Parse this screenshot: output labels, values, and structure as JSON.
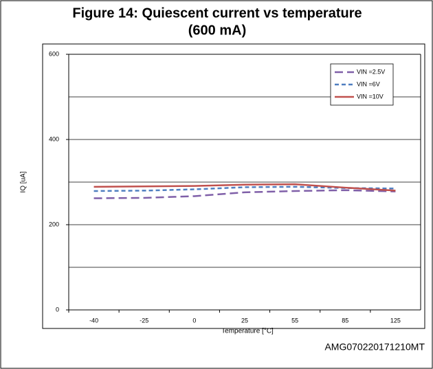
{
  "chart_data": {
    "type": "line",
    "title": [
      "Figure 14: Quiescent current vs temperature",
      "(600 mA)"
    ],
    "x_label": "Temperature [°C]",
    "y_label": "IQ [uA]",
    "footer": "AMG070220171210MT",
    "categories": [
      "-40",
      "-25",
      "0",
      "25",
      "55",
      "85",
      "125"
    ],
    "series": [
      {
        "name": "VIN =2.5V",
        "color": "#7f5fa8",
        "values": [
          262,
          263,
          267,
          276,
          279,
          281,
          278
        ]
      },
      {
        "name": "VIN =6V",
        "color": "#4f7ec0",
        "values": [
          279,
          280,
          283,
          288,
          289,
          286,
          285
        ]
      },
      {
        "name": "VIN =10V",
        "color": "#c0504d",
        "values": [
          289,
          290,
          291,
          294,
          295,
          287,
          280
        ]
      }
    ],
    "ylim": [
      0,
      600
    ],
    "yticks": [
      0,
      200,
      400,
      600
    ],
    "ygrid": [
      100,
      200,
      300,
      400,
      500
    ],
    "legend": "upper right"
  }
}
